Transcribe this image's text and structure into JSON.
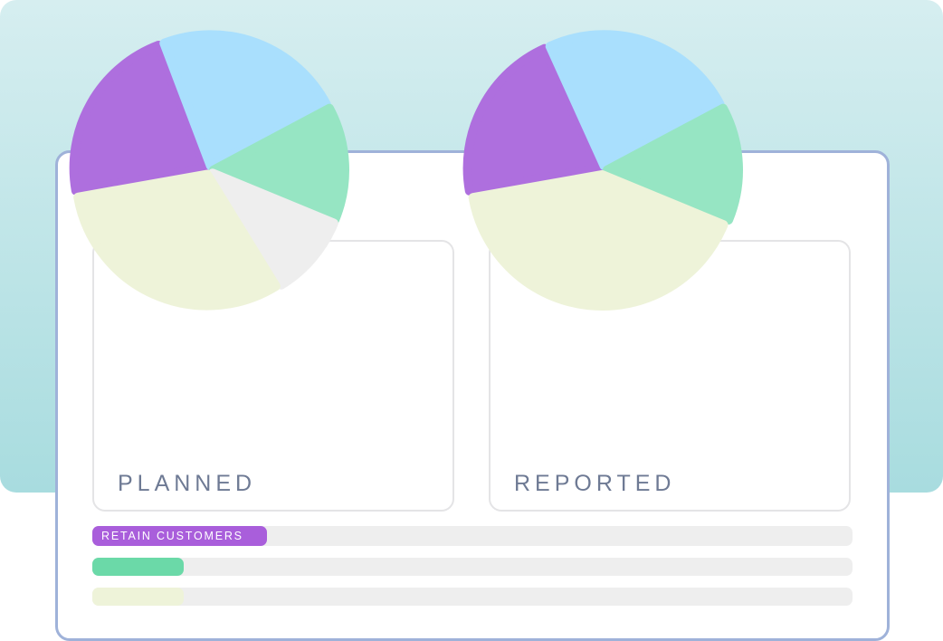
{
  "colors": {
    "purple": "#ae6fde",
    "blue": "#a9dffd",
    "green": "#96e5c3",
    "cream": "#eef3d9",
    "gray": "#eeeeee"
  },
  "chart_data": [
    {
      "type": "pie",
      "title": "PLANNED",
      "slices": [
        {
          "value": 22,
          "color": "#ae6fde"
        },
        {
          "value": 23,
          "color": "#a9dffd"
        },
        {
          "value": 14,
          "color": "#96e5c3"
        },
        {
          "value": 10,
          "color": "#eeeeee"
        },
        {
          "value": 31,
          "color": "#eef3d9"
        }
      ]
    },
    {
      "type": "pie",
      "title": "REPORTED",
      "slices": [
        {
          "value": 21,
          "color": "#ae6fde"
        },
        {
          "value": 24,
          "color": "#a9dffd"
        },
        {
          "value": 14,
          "color": "#96e5c3"
        },
        {
          "value": 41,
          "color": "#eef3d9"
        }
      ]
    },
    {
      "type": "bar",
      "bars": [
        {
          "label": "RETAIN CUSTOMERS",
          "value": 0.23,
          "color": "#a95edb"
        },
        {
          "label": "",
          "value": 0.12,
          "color": "#6bd9a8"
        },
        {
          "label": "",
          "value": 0.12,
          "color": "#eef3d9"
        }
      ]
    }
  ]
}
